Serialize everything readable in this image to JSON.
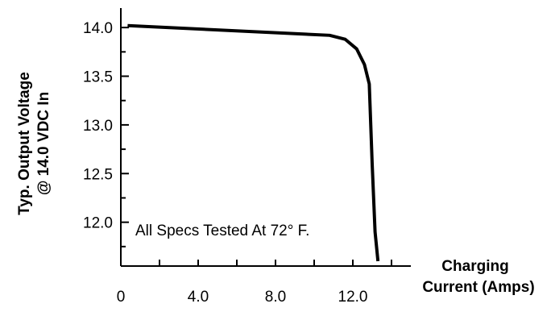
{
  "chart_data": {
    "type": "line",
    "title": "",
    "xlabel_lines": [
      "Charging",
      "Current (Amps)"
    ],
    "ylabel_lines": [
      "Typ. Output Voltage",
      "@ 14.0 VDC In"
    ],
    "annotation": "All Specs Tested At 72° F.",
    "xlim": [
      0,
      15
    ],
    "ylim": [
      11.55,
      14.2
    ],
    "x_ticks": [
      0,
      4.0,
      8.0,
      12.0
    ],
    "x_tick_labels": [
      "0",
      "4.0",
      "8.0",
      "12.0"
    ],
    "x_minor_ticks": [
      2,
      6,
      10,
      14
    ],
    "y_ticks": [
      12.0,
      12.5,
      13.0,
      13.5,
      14.0
    ],
    "y_tick_labels": [
      "12.0",
      "12.5",
      "13.0",
      "13.5",
      "14.0"
    ],
    "y_minor_ticks": [
      11.75,
      12.25,
      12.75,
      13.25,
      13.75
    ],
    "grid": false,
    "series": [
      {
        "color": "#000000",
        "points": [
          [
            0.35,
            14.02
          ],
          [
            10.8,
            13.92
          ],
          [
            11.6,
            13.88
          ],
          [
            12.2,
            13.78
          ],
          [
            12.6,
            13.62
          ],
          [
            12.85,
            13.42
          ],
          [
            13.0,
            12.6
          ],
          [
            13.15,
            11.9
          ],
          [
            13.3,
            11.6
          ]
        ]
      }
    ]
  }
}
